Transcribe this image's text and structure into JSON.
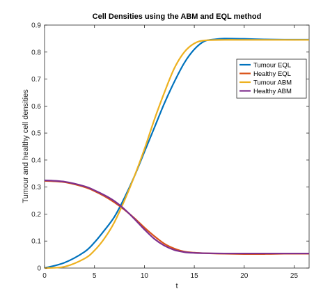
{
  "chart_data": {
    "type": "line",
    "title": "Cell Densities using the ABM and EQL method",
    "xlabel": "t",
    "ylabel": "Tumour and healthy cell densities",
    "xlim": [
      0,
      26.5
    ],
    "ylim": [
      0,
      0.9
    ],
    "xticks": [
      "0",
      "5",
      "10",
      "15",
      "20",
      "25"
    ],
    "yticks": [
      "0",
      "0.1",
      "0.2",
      "0.3",
      "0.4",
      "0.5",
      "0.6",
      "0.7",
      "0.8",
      "0.9"
    ],
    "grid": false,
    "legend_position": "top-right",
    "series": [
      {
        "name": "Tumour EQL",
        "color": "#0072BD",
        "x": [
          0,
          2,
          4,
          5,
          6,
          7,
          8,
          9,
          10,
          11,
          12,
          13,
          14,
          15,
          16,
          17,
          18,
          20,
          22,
          24,
          26.5
        ],
        "y": [
          0,
          0.02,
          0.06,
          0.095,
          0.14,
          0.19,
          0.26,
          0.34,
          0.43,
          0.52,
          0.61,
          0.69,
          0.76,
          0.81,
          0.84,
          0.847,
          0.85,
          0.849,
          0.847,
          0.846,
          0.846
        ]
      },
      {
        "name": "Healthy  EQL",
        "color": "#D95319",
        "x": [
          0,
          2,
          4,
          5,
          6,
          7,
          8,
          9,
          10,
          11,
          12,
          13,
          14,
          15,
          16,
          18,
          20,
          22,
          24,
          26.5
        ],
        "y": [
          0.323,
          0.318,
          0.3,
          0.285,
          0.266,
          0.243,
          0.216,
          0.185,
          0.15,
          0.118,
          0.09,
          0.072,
          0.061,
          0.057,
          0.055,
          0.053,
          0.052,
          0.052,
          0.053,
          0.053
        ]
      },
      {
        "name": "Tumour ABM",
        "color": "#EDB120",
        "x": [
          0,
          2,
          4,
          5,
          6,
          7,
          8,
          9,
          10,
          11,
          12,
          13,
          14,
          15,
          16,
          18,
          20,
          22,
          24,
          26.5
        ],
        "y": [
          0,
          0.005,
          0.035,
          0.065,
          0.11,
          0.17,
          0.25,
          0.34,
          0.44,
          0.55,
          0.65,
          0.74,
          0.8,
          0.832,
          0.843,
          0.845,
          0.845,
          0.845,
          0.845,
          0.845
        ]
      },
      {
        "name": "Healthy  ABM",
        "color": "#7E2F8E",
        "x": [
          0,
          2,
          4,
          5,
          6,
          7,
          8,
          9,
          10,
          11,
          12,
          13,
          14,
          15,
          16,
          18,
          20,
          22,
          24,
          26.5
        ],
        "y": [
          0.325,
          0.32,
          0.303,
          0.288,
          0.27,
          0.248,
          0.218,
          0.182,
          0.143,
          0.108,
          0.083,
          0.067,
          0.059,
          0.056,
          0.055,
          0.054,
          0.054,
          0.054,
          0.054,
          0.054
        ]
      }
    ]
  }
}
